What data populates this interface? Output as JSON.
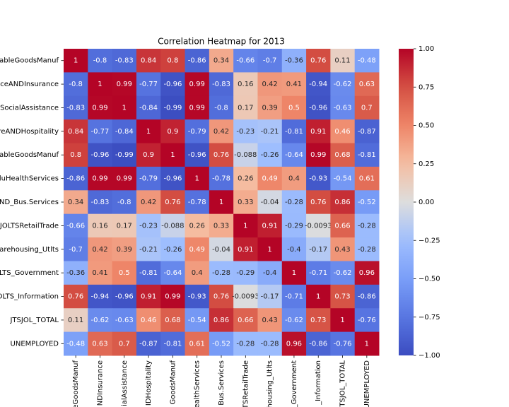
{
  "chart_data": {
    "type": "heatmap",
    "title": "Correlation Heatmap for 2013",
    "y_categories": [
      "ableGoodsManuf",
      "ceANDInsurance",
      "SocialAssistance",
      "reANDHospitality",
      "ableGoodsManuf",
      "luHealthServices",
      "AND_Bus.Services",
      "JOLTSRetailTrade",
      "arehousing_Utlts",
      "LTS_Government",
      "OLTS_Information",
      "JTSJOL_TOTAL",
      "UNEMPLOYED"
    ],
    "x_categories": [
      "eGoodsManuf",
      "NDInsurance",
      "ialAssistance",
      "IDHospitality",
      "GoodsManuf",
      "ealthServices",
      "Bus.Services",
      "TSRetailTrade",
      "housing_Utlts",
      "_Government",
      "_Information",
      "TSJOL_TOTAL",
      "UNEMPLOYED"
    ],
    "values": [
      [
        1,
        -0.8,
        -0.83,
        0.84,
        0.8,
        -0.86,
        0.34,
        -0.66,
        -0.7,
        -0.36,
        0.76,
        0.11,
        -0.48
      ],
      [
        -0.8,
        1,
        0.99,
        -0.77,
        -0.96,
        0.99,
        -0.83,
        0.16,
        0.42,
        0.41,
        -0.94,
        -0.62,
        0.63
      ],
      [
        -0.83,
        0.99,
        1,
        -0.84,
        -0.99,
        0.99,
        -0.8,
        0.17,
        0.39,
        0.5,
        -0.96,
        -0.63,
        0.7
      ],
      [
        0.84,
        -0.77,
        -0.84,
        1,
        0.9,
        -0.79,
        0.42,
        -0.23,
        -0.21,
        -0.81,
        0.91,
        0.46,
        -0.87
      ],
      [
        0.8,
        -0.96,
        -0.99,
        0.9,
        1,
        -0.96,
        0.76,
        -0.088,
        -0.26,
        -0.64,
        0.99,
        0.68,
        -0.81
      ],
      [
        -0.86,
        0.99,
        0.99,
        -0.79,
        -0.96,
        1,
        -0.78,
        0.26,
        0.49,
        0.4,
        -0.93,
        -0.54,
        0.61
      ],
      [
        0.34,
        -0.83,
        -0.8,
        0.42,
        0.76,
        -0.78,
        1,
        0.33,
        -0.04,
        -0.28,
        0.76,
        0.86,
        -0.52
      ],
      [
        -0.66,
        0.16,
        0.17,
        -0.23,
        -0.088,
        0.26,
        0.33,
        1,
        0.91,
        -0.29,
        -0.0093,
        0.66,
        -0.28
      ],
      [
        -0.7,
        0.42,
        0.39,
        -0.21,
        -0.26,
        0.49,
        -0.04,
        0.91,
        1,
        -0.4,
        -0.17,
        0.43,
        -0.28
      ],
      [
        -0.36,
        0.41,
        0.5,
        -0.81,
        -0.64,
        0.4,
        -0.28,
        -0.29,
        -0.4,
        1,
        -0.71,
        -0.62,
        0.96
      ],
      [
        0.76,
        -0.94,
        -0.96,
        0.91,
        0.99,
        -0.93,
        0.76,
        -0.0093,
        -0.17,
        -0.71,
        1,
        0.73,
        -0.86
      ],
      [
        0.11,
        -0.62,
        -0.63,
        0.46,
        0.68,
        -0.54,
        0.86,
        0.66,
        0.43,
        -0.62,
        0.73,
        1,
        -0.76
      ],
      [
        -0.48,
        0.63,
        0.7,
        -0.87,
        -0.81,
        0.61,
        -0.52,
        -0.28,
        -0.28,
        0.96,
        -0.86,
        -0.76,
        1
      ]
    ],
    "colormap": "coolwarm",
    "clim": [
      -1,
      1
    ],
    "cticks": [
      {
        "value": 1,
        "label": "1.00"
      },
      {
        "value": 0.75,
        "label": "0.75"
      },
      {
        "value": 0.5,
        "label": "0.50"
      },
      {
        "value": 0.25,
        "label": "0.25"
      },
      {
        "value": 0,
        "label": "0.00"
      },
      {
        "value": -0.25,
        "label": "−0.25"
      },
      {
        "value": -0.5,
        "label": "−0.50"
      },
      {
        "value": -0.75,
        "label": "−0.75"
      },
      {
        "value": -1,
        "label": "−1.00"
      }
    ]
  }
}
